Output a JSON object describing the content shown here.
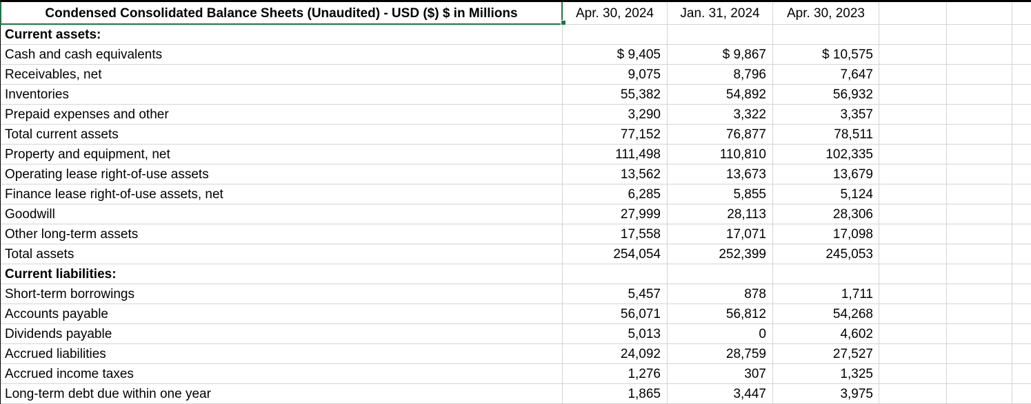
{
  "header": {
    "title": "Condensed Consolidated Balance Sheets (Unaudited) - USD ($) $ in Millions",
    "columns": [
      "Apr. 30, 2024",
      "Jan. 31, 2024",
      "Apr. 30, 2023"
    ]
  },
  "rows": [
    {
      "label": "Current assets:",
      "bold": true,
      "values": [
        "",
        "",
        ""
      ]
    },
    {
      "label": "Cash and cash equivalents",
      "values": [
        "$ 9,405",
        "$ 9,867",
        "$ 10,575"
      ]
    },
    {
      "label": "Receivables, net",
      "values": [
        "9,075",
        "8,796",
        "7,647"
      ]
    },
    {
      "label": "Inventories",
      "values": [
        "55,382",
        "54,892",
        "56,932"
      ]
    },
    {
      "label": "Prepaid expenses and other",
      "values": [
        "3,290",
        "3,322",
        "3,357"
      ]
    },
    {
      "label": "Total current assets",
      "values": [
        "77,152",
        "76,877",
        "78,511"
      ]
    },
    {
      "label": "Property and equipment, net",
      "values": [
        "111,498",
        "110,810",
        "102,335"
      ]
    },
    {
      "label": "Operating lease right-of-use assets",
      "values": [
        "13,562",
        "13,673",
        "13,679"
      ]
    },
    {
      "label": "Finance lease right-of-use assets, net",
      "values": [
        "6,285",
        "5,855",
        "5,124"
      ]
    },
    {
      "label": "Goodwill",
      "values": [
        "27,999",
        "28,113",
        "28,306"
      ]
    },
    {
      "label": "Other long-term assets",
      "values": [
        "17,558",
        "17,071",
        "17,098"
      ]
    },
    {
      "label": "Total assets",
      "values": [
        "254,054",
        "252,399",
        "245,053"
      ]
    },
    {
      "label": "Current liabilities:",
      "bold": true,
      "values": [
        "",
        "",
        ""
      ]
    },
    {
      "label": "Short-term borrowings",
      "values": [
        "5,457",
        "878",
        "1,711"
      ]
    },
    {
      "label": "Accounts payable",
      "values": [
        "56,071",
        "56,812",
        "54,268"
      ]
    },
    {
      "label": "Dividends payable",
      "values": [
        "5,013",
        "0",
        "4,602"
      ]
    },
    {
      "label": "Accrued liabilities",
      "values": [
        "24,092",
        "28,759",
        "27,527"
      ]
    },
    {
      "label": "Accrued income taxes",
      "values": [
        "1,276",
        "307",
        "1,325"
      ]
    },
    {
      "label": "Long-term debt due within one year",
      "values": [
        "1,865",
        "3,447",
        "3,975"
      ]
    }
  ]
}
